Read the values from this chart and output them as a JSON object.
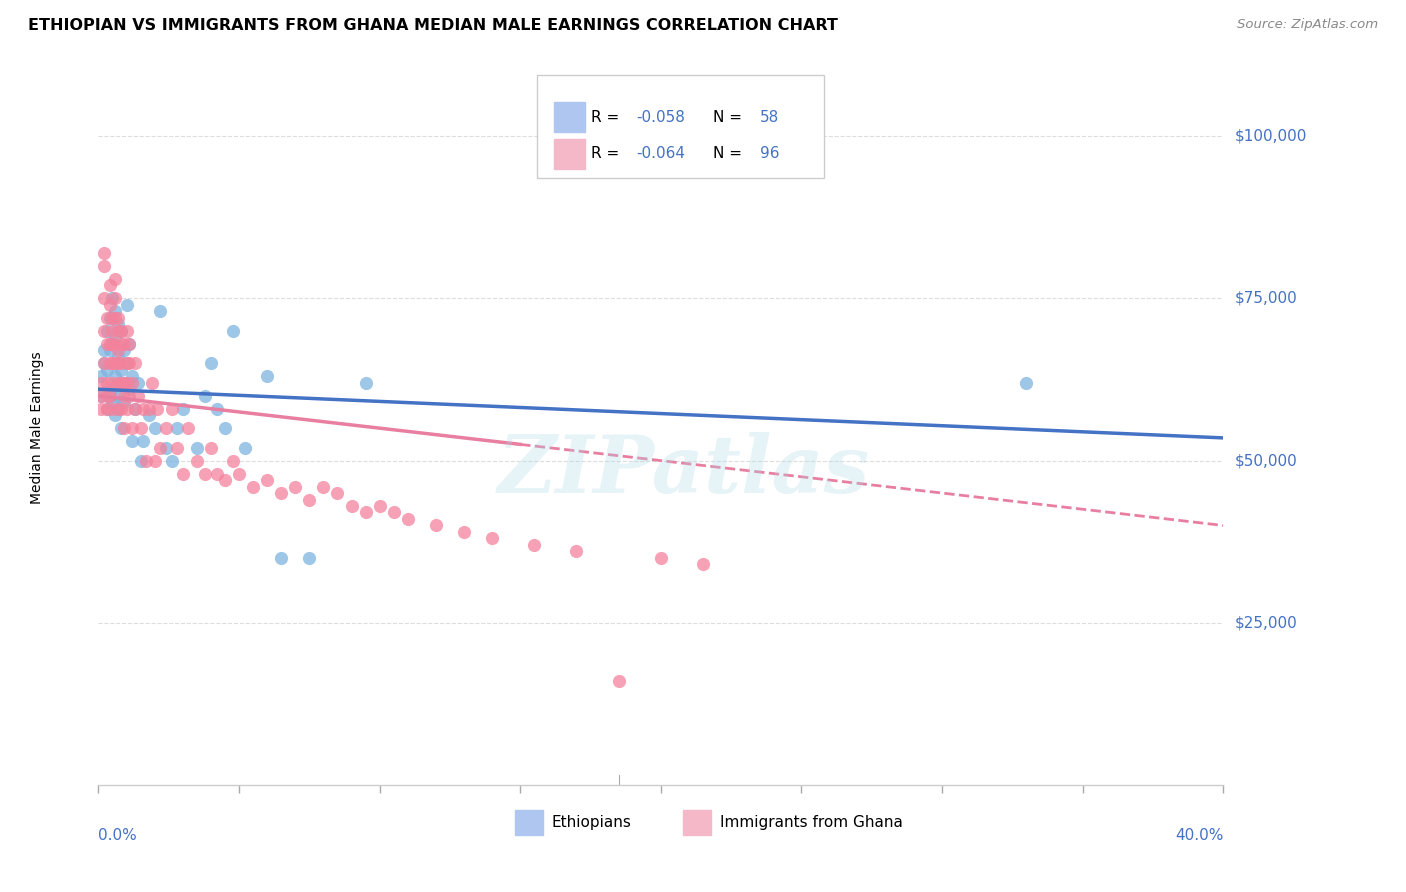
{
  "title": "ETHIOPIAN VS IMMIGRANTS FROM GHANA MEDIAN MALE EARNINGS CORRELATION CHART",
  "source": "Source: ZipAtlas.com",
  "ylabel": "Median Male Earnings",
  "xlim": [
    0.0,
    0.4
  ],
  "ylim": [
    0,
    110000
  ],
  "yticks": [
    25000,
    50000,
    75000,
    100000
  ],
  "ytick_labels": [
    "$25,000",
    "$50,000",
    "$75,000",
    "$100,000"
  ],
  "watermark": "ZIPatlas",
  "blue_color": "#7db3e0",
  "pink_color": "#f4829c",
  "blue_line_color": "#4472c4",
  "pink_line_color": "#e87fa0",
  "ethiopians_x": [
    0.001,
    0.001,
    0.002,
    0.002,
    0.003,
    0.003,
    0.003,
    0.004,
    0.004,
    0.004,
    0.005,
    0.005,
    0.005,
    0.005,
    0.006,
    0.006,
    0.006,
    0.006,
    0.007,
    0.007,
    0.007,
    0.007,
    0.008,
    0.008,
    0.008,
    0.009,
    0.009,
    0.009,
    0.01,
    0.01,
    0.011,
    0.011,
    0.012,
    0.012,
    0.013,
    0.014,
    0.015,
    0.016,
    0.018,
    0.02,
    0.022,
    0.024,
    0.026,
    0.028,
    0.03,
    0.035,
    0.038,
    0.04,
    0.042,
    0.045,
    0.048,
    0.052,
    0.06,
    0.065,
    0.075,
    0.095,
    0.33
  ],
  "ethiopians_y": [
    60000,
    63000,
    65000,
    67000,
    58000,
    70000,
    64000,
    67000,
    60000,
    72000,
    59000,
    68000,
    61000,
    75000,
    57000,
    63000,
    69000,
    73000,
    60000,
    66000,
    71000,
    58000,
    64000,
    70000,
    55000,
    62000,
    67000,
    59000,
    65000,
    74000,
    61000,
    68000,
    63000,
    53000,
    58000,
    62000,
    50000,
    53000,
    57000,
    55000,
    73000,
    52000,
    50000,
    55000,
    58000,
    52000,
    60000,
    65000,
    58000,
    55000,
    70000,
    52000,
    63000,
    35000,
    35000,
    62000,
    62000
  ],
  "ghana_x": [
    0.001,
    0.001,
    0.001,
    0.002,
    0.002,
    0.002,
    0.002,
    0.002,
    0.003,
    0.003,
    0.003,
    0.003,
    0.003,
    0.004,
    0.004,
    0.004,
    0.004,
    0.004,
    0.005,
    0.005,
    0.005,
    0.005,
    0.005,
    0.005,
    0.006,
    0.006,
    0.006,
    0.006,
    0.006,
    0.007,
    0.007,
    0.007,
    0.007,
    0.007,
    0.007,
    0.008,
    0.008,
    0.008,
    0.008,
    0.008,
    0.009,
    0.009,
    0.009,
    0.009,
    0.01,
    0.01,
    0.01,
    0.01,
    0.011,
    0.011,
    0.011,
    0.012,
    0.012,
    0.013,
    0.013,
    0.014,
    0.015,
    0.016,
    0.017,
    0.018,
    0.019,
    0.02,
    0.021,
    0.022,
    0.024,
    0.026,
    0.028,
    0.03,
    0.032,
    0.035,
    0.038,
    0.04,
    0.042,
    0.045,
    0.048,
    0.05,
    0.055,
    0.06,
    0.065,
    0.07,
    0.075,
    0.08,
    0.085,
    0.09,
    0.095,
    0.1,
    0.105,
    0.11,
    0.12,
    0.13,
    0.14,
    0.155,
    0.17,
    0.185,
    0.2,
    0.215
  ],
  "ghana_y": [
    60000,
    58000,
    62000,
    75000,
    70000,
    80000,
    65000,
    82000,
    60000,
    68000,
    72000,
    58000,
    62000,
    77000,
    65000,
    68000,
    74000,
    60000,
    70000,
    65000,
    72000,
    58000,
    62000,
    68000,
    75000,
    78000,
    65000,
    68000,
    72000,
    62000,
    67000,
    70000,
    58000,
    65000,
    72000,
    68000,
    62000,
    58000,
    65000,
    70000,
    60000,
    62000,
    68000,
    55000,
    70000,
    65000,
    58000,
    62000,
    68000,
    60000,
    65000,
    55000,
    62000,
    58000,
    65000,
    60000,
    55000,
    58000,
    50000,
    58000,
    62000,
    50000,
    58000,
    52000,
    55000,
    58000,
    52000,
    48000,
    55000,
    50000,
    48000,
    52000,
    48000,
    47000,
    50000,
    48000,
    46000,
    47000,
    45000,
    46000,
    44000,
    46000,
    45000,
    43000,
    42000,
    43000,
    42000,
    41000,
    40000,
    39000,
    38000,
    37000,
    36000,
    16000,
    35000,
    34000
  ]
}
